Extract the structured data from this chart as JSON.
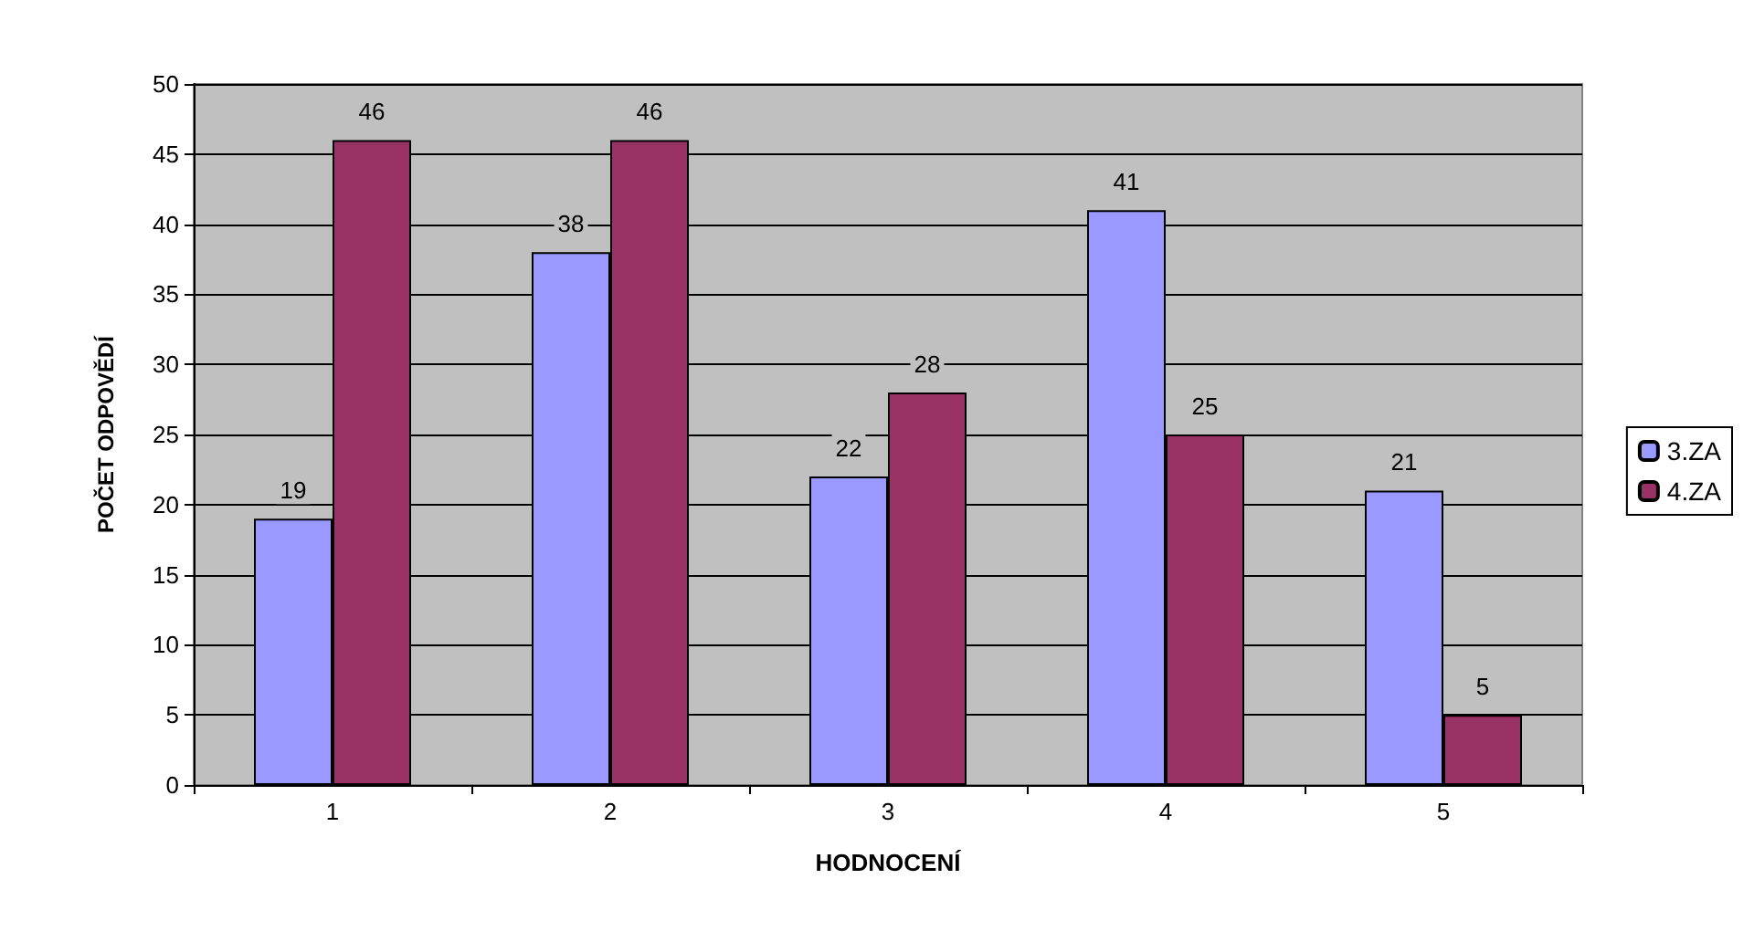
{
  "chart_data": {
    "type": "bar",
    "xlabel": "HODNOCENÍ",
    "ylabel": "POČET ODPOVĚDÍ",
    "categories": [
      "1",
      "2",
      "3",
      "4",
      "5"
    ],
    "series": [
      {
        "name": "3.ZA",
        "color": "#9999ff",
        "values": [
          19,
          38,
          22,
          41,
          21
        ]
      },
      {
        "name": "4.ZA",
        "color": "#993366",
        "values": [
          46,
          46,
          28,
          25,
          5
        ]
      }
    ],
    "ylim": [
      0,
      50
    ],
    "yticks": [
      0,
      5,
      10,
      15,
      20,
      25,
      30,
      35,
      40,
      45,
      50
    ],
    "grid": "y",
    "legend": "right",
    "data_labels": true
  }
}
